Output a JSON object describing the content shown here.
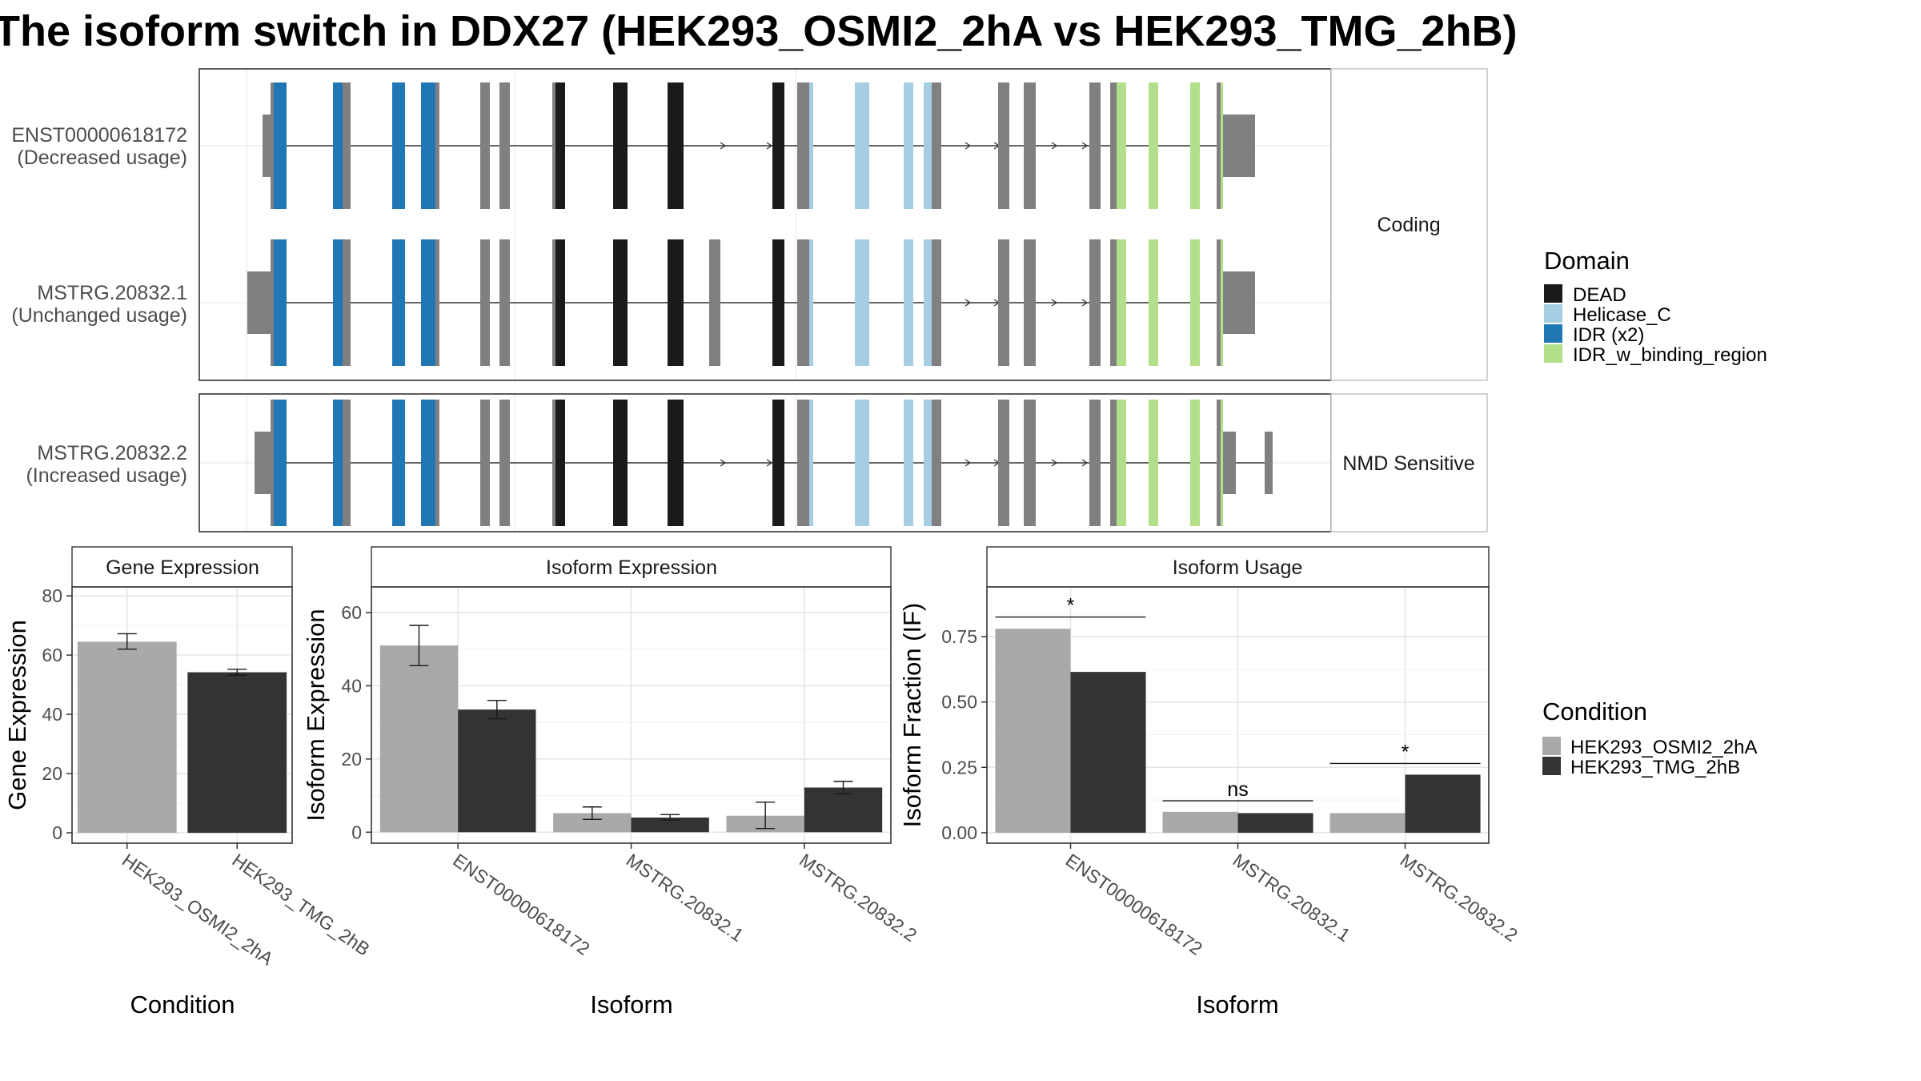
{
  "title": "The isoform switch in DDX27 (HEK293_OSMI2_2hA vs HEK293_TMG_2hB)",
  "structure": {
    "facets": [
      "Coding",
      "NMD Sensitive"
    ],
    "isoforms": [
      {
        "id": "ENST00000618172",
        "usage": "(Decreased usage)",
        "facet": "Coding"
      },
      {
        "id": "MSTRG.20832.1",
        "usage": "(Unchanged usage)",
        "facet": "Coding"
      },
      {
        "id": "MSTRG.20832.2",
        "usage": "(Increased usage)",
        "facet": "NMD Sensitive"
      }
    ]
  },
  "legend_domain": {
    "title": "Domain",
    "items": [
      {
        "label": "DEAD",
        "color": "#1a1a1a"
      },
      {
        "label": "Helicase_C",
        "color": "#a6cee3"
      },
      {
        "label": "IDR (x2)",
        "color": "#1f78b4"
      },
      {
        "label": "IDR_w_binding_region",
        "color": "#b2df8a"
      }
    ]
  },
  "legend_condition": {
    "title": "Condition",
    "items": [
      {
        "label": "HEK293_OSMI2_2hA",
        "color": "#a9a9a9"
      },
      {
        "label": "HEK293_TMG_2hB",
        "color": "#333333"
      }
    ]
  },
  "chart_data": [
    {
      "type": "bar",
      "title": "Gene Expression",
      "xlabel": "Condition",
      "ylabel": "Gene Expression",
      "categories": [
        "HEK293_OSMI2_2hA",
        "HEK293_TMG_2hB"
      ],
      "values": [
        64.5,
        54.2
      ],
      "errors": [
        [
          62.0,
          67.2
        ],
        [
          53.2,
          55.2
        ]
      ],
      "colors": [
        "#a9a9a9",
        "#333333"
      ],
      "ylim": [
        -3.5,
        83
      ],
      "yticks": [
        0,
        20,
        40,
        60,
        80
      ],
      "ytick_labels": [
        "0",
        "20",
        "40",
        "60",
        "80"
      ]
    },
    {
      "type": "bar",
      "title": "Isoform Expression",
      "xlabel": "Isoform",
      "ylabel": "Isoform Expression",
      "categories": [
        "ENST00000618172",
        "MSTRG.20832.1",
        "MSTRG.20832.2"
      ],
      "series": [
        {
          "name": "HEK293_OSMI2_2hA",
          "values": [
            51.0,
            5.2,
            4.5
          ],
          "errors": [
            [
              45.5,
              56.5
            ],
            [
              3.5,
              6.9
            ],
            [
              1.0,
              8.2
            ]
          ]
        },
        {
          "name": "HEK293_TMG_2hB",
          "values": [
            33.5,
            4.0,
            12.2
          ],
          "errors": [
            [
              31.0,
              36.0
            ],
            [
              3.3,
              4.8
            ],
            [
              10.5,
              13.9
            ]
          ]
        }
      ],
      "ylim": [
        -3,
        67
      ],
      "yticks": [
        0,
        20,
        40,
        60
      ],
      "ytick_labels": [
        "0",
        "20",
        "40",
        "60"
      ]
    },
    {
      "type": "bar",
      "title": "Isoform Usage",
      "xlabel": "Isoform",
      "ylabel": "Isoform Fraction (IF)",
      "categories": [
        "ENST00000618172",
        "MSTRG.20832.1",
        "MSTRG.20832.2"
      ],
      "series": [
        {
          "name": "HEK293_OSMI2_2hA",
          "values": [
            0.78,
            0.08,
            0.075
          ]
        },
        {
          "name": "HEK293_TMG_2hB",
          "values": [
            0.615,
            0.075,
            0.222
          ]
        }
      ],
      "significance": [
        {
          "label": "*",
          "y": 0.825
        },
        {
          "label": "ns",
          "y": 0.122
        },
        {
          "label": "*",
          "y": 0.265
        }
      ],
      "ylim": [
        -0.04,
        0.94
      ],
      "yticks": [
        0,
        0.25,
        0.5,
        0.75
      ],
      "ytick_labels": [
        "0.00",
        "0.25",
        "0.50",
        "0.75"
      ]
    }
  ]
}
